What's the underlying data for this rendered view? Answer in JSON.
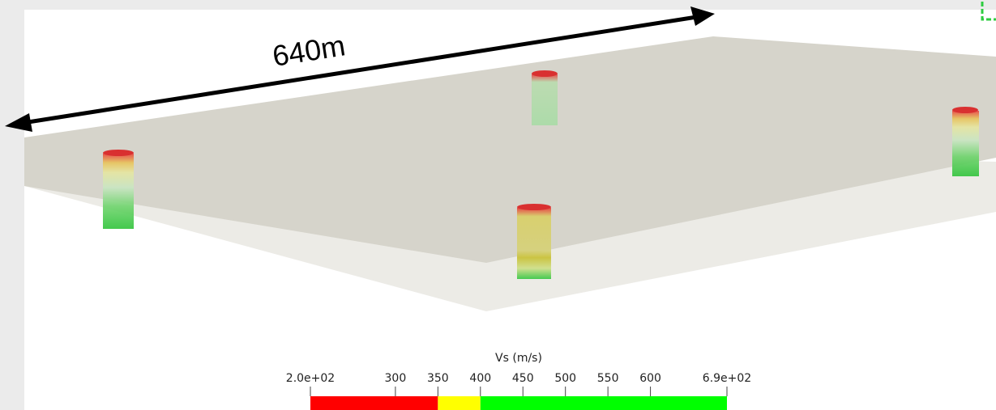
{
  "annotation": "640m",
  "colorbar": {
    "title": "Vs (m/s)",
    "lim": [
      200,
      690
    ],
    "ticks": [
      {
        "value": 200,
        "label": "2.0e+02"
      },
      300,
      350,
      400,
      450,
      500,
      550,
      600,
      {
        "value": 690,
        "label": "6.9e+02"
      }
    ],
    "segments": [
      {
        "from": 200,
        "to": 350,
        "color": "#ff0000"
      },
      {
        "from": 350,
        "to": 400,
        "color": "#ffff00"
      },
      {
        "from": 400,
        "to": 690,
        "color": "#00ff00"
      }
    ]
  }
}
